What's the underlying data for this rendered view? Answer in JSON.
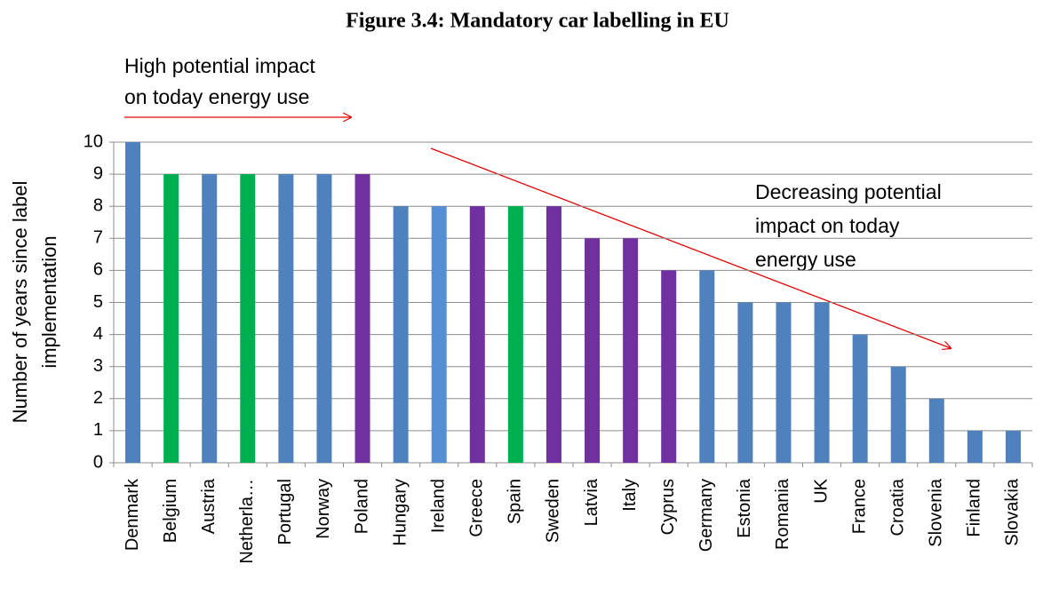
{
  "chart_data": {
    "type": "bar",
    "title": "Figure 3.4: Mandatory car labelling in EU",
    "y_label": [
      "Number of years since label",
      "implementation"
    ],
    "annotations": [
      [
        "High potential impact",
        "on today energy use"
      ],
      [
        "Decreasing potential",
        "impact on today",
        "energy use"
      ]
    ],
    "categories": [
      "Denmark",
      "Belgium",
      "Austria",
      "Netherla…",
      "Portugal",
      "Norway",
      "Poland",
      "Hungary",
      "Ireland",
      "Greece",
      "Spain",
      "Sweden",
      "Latvia",
      "Italy",
      "Cyprus",
      "Germany",
      "Estonia",
      "Romania",
      "UK",
      "France",
      "Croatia",
      "Slovenia",
      "Finland",
      "Slovakia"
    ],
    "values": [
      10,
      9,
      9,
      9,
      9,
      9,
      9,
      8,
      8,
      8,
      8,
      8,
      7,
      7,
      6,
      6,
      5,
      5,
      5,
      4,
      3,
      2,
      1,
      1
    ],
    "colors": [
      "#4f81bd",
      "#00b050",
      "#4f81bd",
      "#00b050",
      "#4f81bd",
      "#4f81bd",
      "#7030a0",
      "#4f81bd",
      "#558ed5",
      "#7030a0",
      "#00b050",
      "#7030a0",
      "#7030a0",
      "#7030a0",
      "#7030a0",
      "#4f81bd",
      "#4f81bd",
      "#4f81bd",
      "#4f81bd",
      "#4f81bd",
      "#4f81bd",
      "#4f81bd",
      "#4f81bd",
      "#4f81bd"
    ],
    "ylim": [
      0,
      10
    ],
    "yticks": [
      0,
      1,
      2,
      3,
      4,
      5,
      6,
      7,
      8,
      9,
      10
    ],
    "grid": true
  }
}
